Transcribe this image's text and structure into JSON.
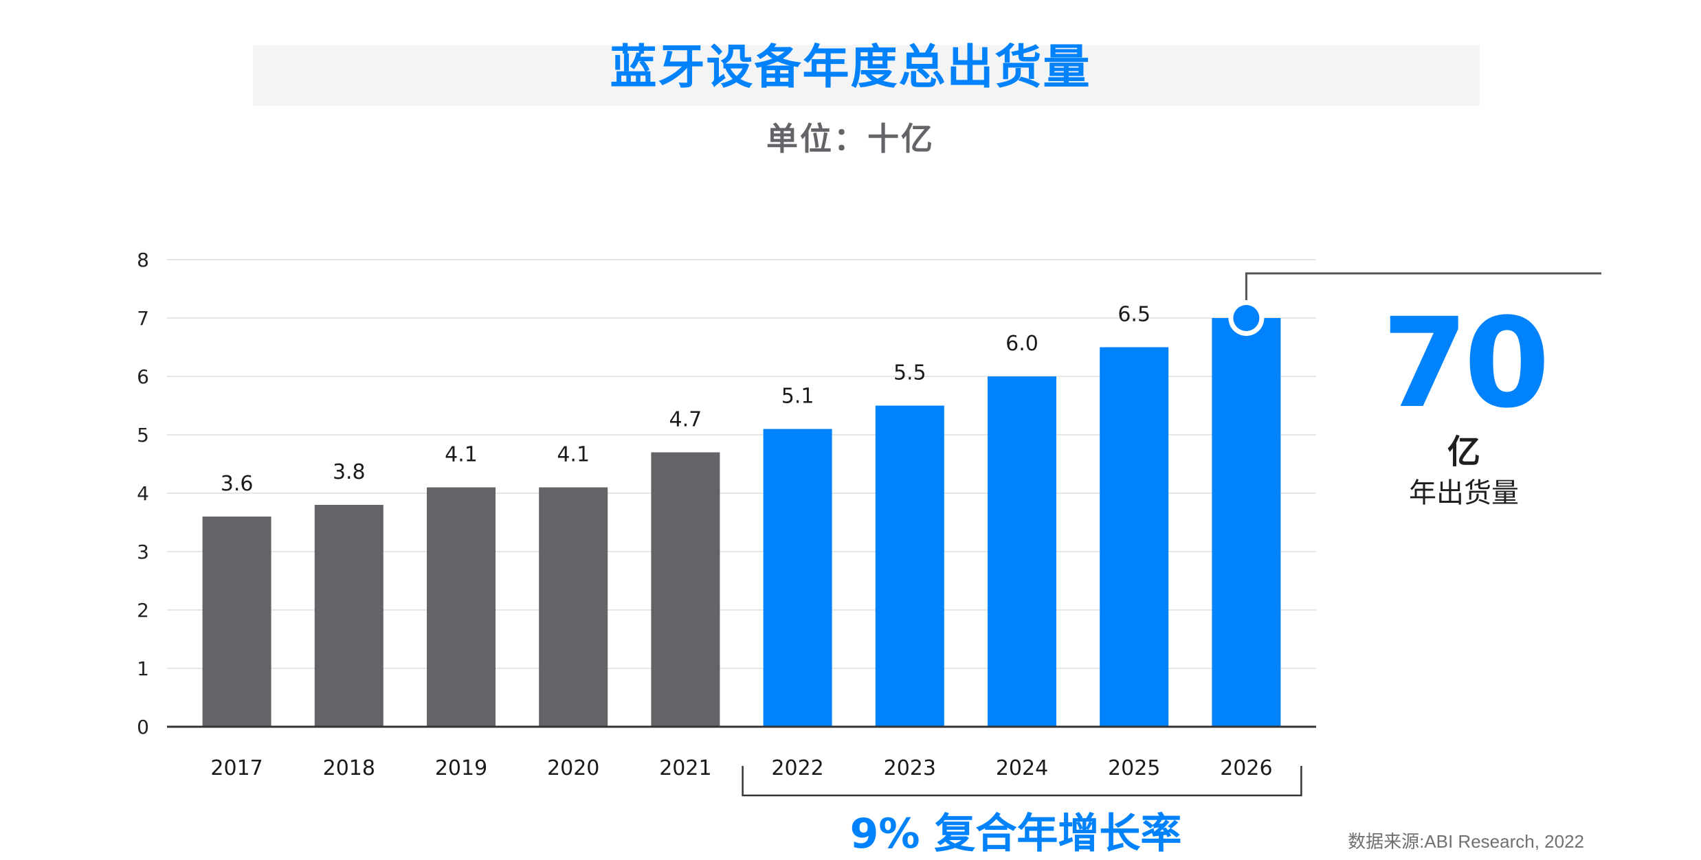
{
  "header": {
    "title": "蓝牙设备年度总出货量",
    "subtitle": "单位：十亿"
  },
  "callout": {
    "number": "70",
    "unit": "亿",
    "label": "年出货量"
  },
  "cagr_label": "9% 复合年增长率",
  "source": "数据来源:ABI Research, 2022",
  "colors": {
    "historical": "#636468",
    "forecast": "#0082fc",
    "grid": "#e6e6e6",
    "axis": "#333333"
  },
  "chart_data": {
    "type": "bar",
    "title": "蓝牙设备年度总出货量",
    "subtitle": "单位：十亿",
    "categories": [
      "2017",
      "2018",
      "2019",
      "2020",
      "2021",
      "2022",
      "2023",
      "2024",
      "2025",
      "2026"
    ],
    "values": [
      3.6,
      3.8,
      4.1,
      4.1,
      4.7,
      5.1,
      5.5,
      6.0,
      6.5,
      7.0
    ],
    "value_labels": [
      "3.6",
      "3.8",
      "4.1",
      "4.1",
      "4.7",
      "5.1",
      "5.5",
      "6.0",
      "6.5",
      ""
    ],
    "forecast_start_index": 5,
    "ylim": [
      0,
      8
    ],
    "yticks": [
      0,
      1,
      2,
      3,
      4,
      5,
      6,
      7,
      8
    ],
    "grid": true,
    "xlabel": "",
    "ylabel": ""
  }
}
